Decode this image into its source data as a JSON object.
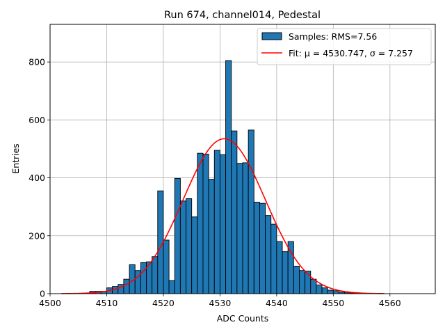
{
  "chart_data": {
    "type": "bar",
    "title": "Run 674, channel014, Pedestal",
    "xlabel": "ADC Counts",
    "ylabel": "Entries",
    "xlim": [
      4500,
      4568
    ],
    "ylim": [
      0,
      930
    ],
    "xticks": [
      4500,
      4510,
      4520,
      4530,
      4540,
      4550,
      4560
    ],
    "yticks": [
      0,
      200,
      400,
      600,
      800
    ],
    "grid": true,
    "bin_width": 1,
    "histogram": {
      "name": "Samples: RMS=7.56",
      "color": "#1f77b4",
      "bin_starts": [
        4507,
        4508,
        4509,
        4510,
        4511,
        4512,
        4513,
        4514,
        4515,
        4516,
        4517,
        4518,
        4519,
        4520,
        4521,
        4522,
        4523,
        4524,
        4525,
        4526,
        4527,
        4528,
        4529,
        4530,
        4531,
        4532,
        4533,
        4534,
        4535,
        4536,
        4537,
        4538,
        4539,
        4540,
        4541,
        4542,
        4543,
        4544,
        4545,
        4546,
        4547,
        4548,
        4549,
        4550,
        4551,
        4552,
        4553
      ],
      "values": [
        8,
        8,
        8,
        20,
        25,
        32,
        50,
        100,
        80,
        107,
        110,
        128,
        355,
        185,
        45,
        398,
        320,
        328,
        265,
        485,
        482,
        395,
        495,
        480,
        805,
        562,
        450,
        452,
        565,
        316,
        312,
        270,
        240,
        180,
        145,
        180,
        95,
        80,
        78,
        50,
        30,
        20,
        12,
        10,
        5,
        3,
        2
      ]
    },
    "fit": {
      "name": "Fit: μ = 4530.747, σ = 7.257",
      "label_prefix": "Fit: ",
      "label_mu": "μ = 4530.747",
      "label_sigma": "σ = 7.257",
      "color": "#ff0000",
      "mu": 4530.747,
      "sigma": 7.257,
      "amplitude": 535,
      "x_range": [
        4502,
        4559
      ]
    },
    "legend_position": "upper-right"
  }
}
